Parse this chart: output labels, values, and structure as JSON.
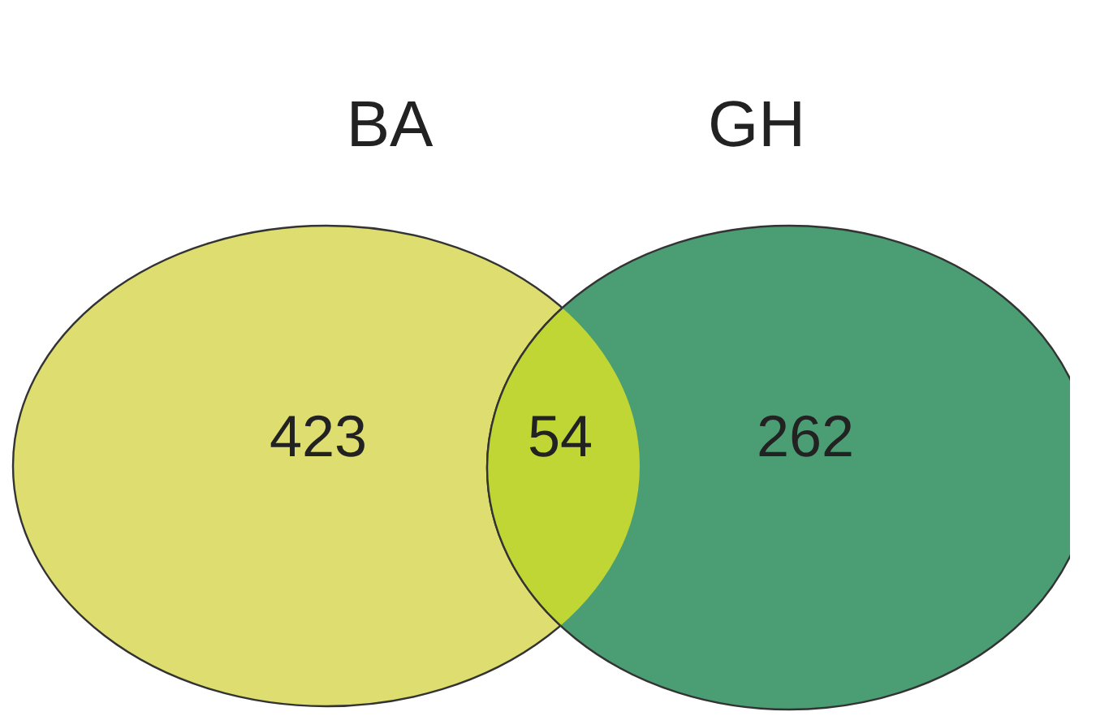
{
  "chart_data": {
    "type": "other",
    "categories": [
      "BA",
      null,
      "GH"
    ],
    "values": [
      423,
      54,
      262
    ],
    "colors": [
      "#dedd6f",
      "#bfd634",
      "#4b9e73"
    ],
    "data_labels": true
  }
}
